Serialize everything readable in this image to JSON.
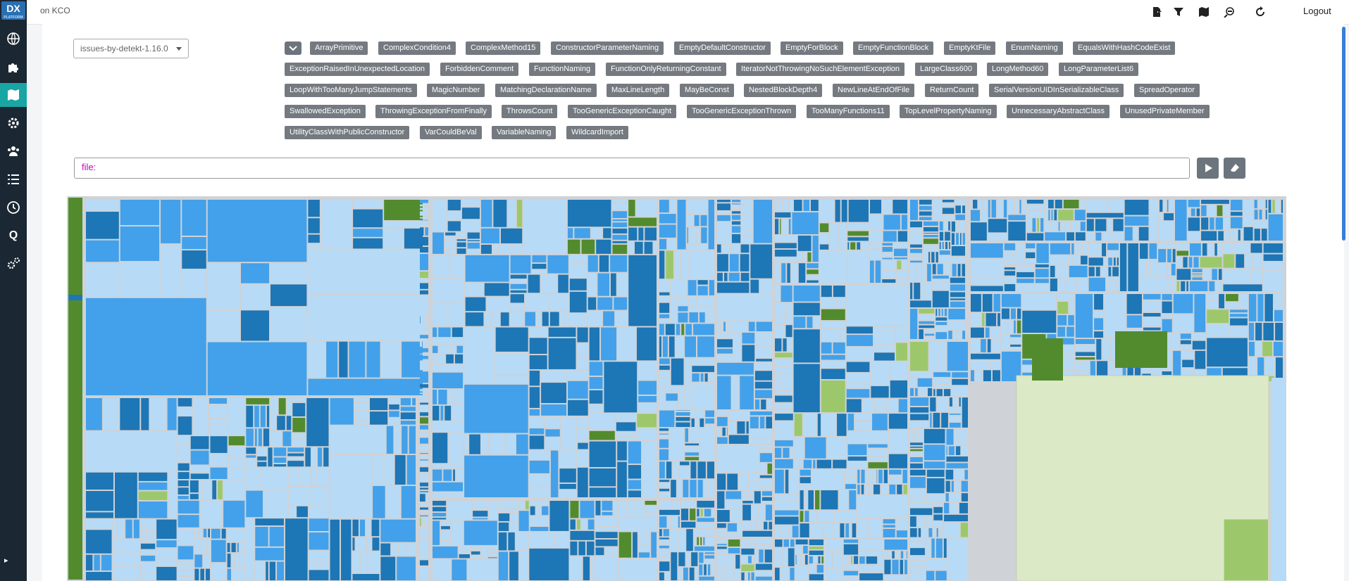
{
  "app": {
    "logo_text": "DX",
    "logo_sub": "PLATFORM",
    "title": "on KCO"
  },
  "sidebar": {
    "items": [
      {
        "name": "globe-icon",
        "active": false
      },
      {
        "name": "puzzle-icon",
        "active": false
      },
      {
        "name": "map-icon",
        "active": true
      },
      {
        "name": "cog-icon",
        "active": false
      },
      {
        "name": "users-icon",
        "active": false
      },
      {
        "name": "list-icon",
        "active": false
      },
      {
        "name": "history-icon",
        "active": false
      },
      {
        "name": "query-icon",
        "active": false,
        "label": "Q"
      },
      {
        "name": "settings-icon",
        "active": false
      }
    ],
    "expand_label": "▸"
  },
  "topbar": {
    "icons": [
      "export-icon",
      "filter-icon",
      "map-icon",
      "zoom-out-icon",
      "refresh-icon"
    ],
    "logout_label": "Logout"
  },
  "toolbar": {
    "select_value": "issues-by-detekt-1.16.0",
    "filter_value": "file:",
    "run_icon": "play-icon",
    "clear_icon": "eraser-icon"
  },
  "tags": [
    [
      "ArrayPrimitive",
      "ComplexCondition4",
      "ComplexMethod15",
      "ConstructorParameterNaming",
      "EmptyDefaultConstructor",
      "EmptyForBlock",
      "EmptyFunctionBlock",
      "EmptyKtFile",
      "EnumNaming",
      "EqualsWithHashCodeExist"
    ],
    [
      "ExceptionRaisedInUnexpectedLocation",
      "ForbiddenComment",
      "FunctionNaming",
      "FunctionOnlyReturningConstant",
      "IteratorNotThrowingNoSuchElementException",
      "LargeClass600",
      "LongMethod60",
      "LongParameterList6"
    ],
    [
      "LoopWithTooManyJumpStatements",
      "MagicNumber",
      "MatchingDeclarationName",
      "MaxLineLength",
      "MayBeConst",
      "NestedBlockDepth4",
      "NewLineAtEndOfFile",
      "ReturnCount",
      "SerialVersionUIDInSerializableClass",
      "SpreadOperator"
    ],
    [
      "SwallowedException",
      "ThrowingExceptionFromFinally",
      "ThrowsCount",
      "TooGenericExceptionCaught",
      "TooGenericExceptionThrown",
      "TooManyFunctions11",
      "TopLevelPropertyNaming",
      "UnnecessaryAbstractClass",
      "UnusedPrivateMember"
    ],
    [
      "UtilityClassWithPublicConstructor",
      "VarCouldBeVal",
      "VariableNaming",
      "WildcardImport"
    ]
  ],
  "colors": {
    "sidebar_bg": "#1b2733",
    "accent": "#1aa5a5",
    "tile_dark": "#1d76b5",
    "tile_mid": "#42a1ea",
    "tile_light": "#b7dbf6",
    "tile_green": "#528b2e",
    "tile_lightgreen": "#9cc86b",
    "tile_palegreen": "#dbe9c6"
  }
}
